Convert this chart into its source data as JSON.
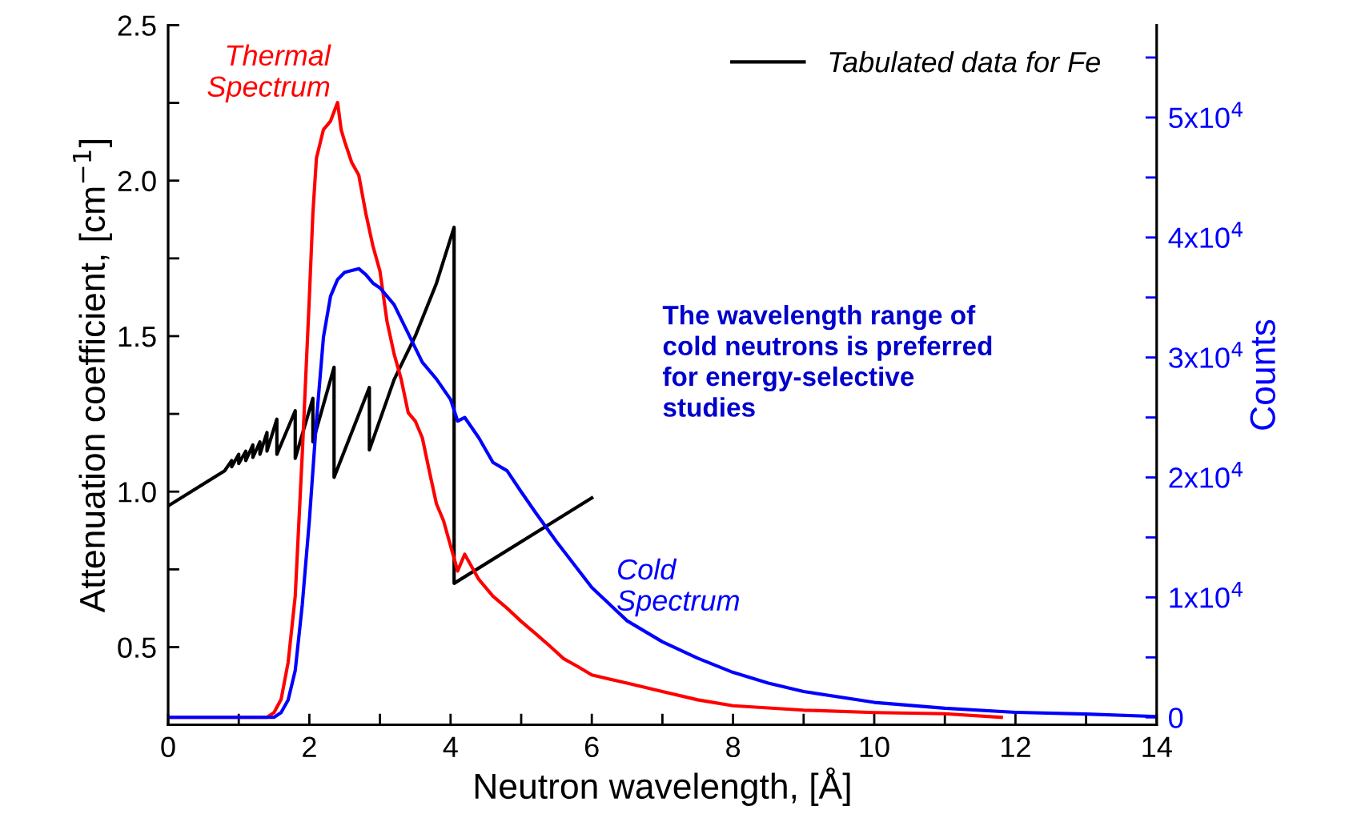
{
  "chart_data": {
    "type": "line",
    "xlabel": "Neutron wavelength, [Å]",
    "ylabel": "Attenuation coefficient, [cm$^{−1}$]",
    "y2label": "Counts",
    "xlim": [
      0,
      14
    ],
    "xticks": [
      0,
      {
        "value": 1,
        "label": null
      },
      2,
      {
        "value": 3,
        "label": null
      },
      4,
      {
        "value": 5,
        "label": null
      },
      6,
      {
        "value": 7,
        "label": null
      },
      8,
      {
        "value": 9,
        "label": null
      },
      10,
      {
        "value": 11,
        "label": null
      },
      12,
      {
        "value": 13,
        "label": null
      },
      14
    ],
    "ylim": [
      0.25,
      2.5
    ],
    "yticks": [
      0.5,
      {
        "value": 0.75,
        "label": null
      },
      {
        "value": 1,
        "label": "1.0"
      },
      {
        "value": 1.25,
        "label": null
      },
      1.5,
      {
        "value": 1.75,
        "label": null
      },
      {
        "value": 2,
        "label": "2.0"
      },
      {
        "value": 2.25,
        "label": null
      },
      2.5
    ],
    "y2lim": [
      -625,
      57700
    ],
    "y2ticks": [
      0,
      {
        "value": 5000,
        "label": null
      },
      {
        "value": 10000,
        "label": "1x10$^{4}$"
      },
      {
        "value": 15000,
        "label": null
      },
      {
        "value": 20000,
        "label": "2x10$^{4}$"
      },
      {
        "value": 25000,
        "label": null
      },
      {
        "value": 30000,
        "label": "3x10$^{4}$"
      },
      {
        "value": 35000,
        "label": null
      },
      {
        "value": 40000,
        "label": "4x10$^{4}$"
      },
      {
        "value": 45000,
        "label": null
      },
      {
        "value": 50000,
        "label": "5x10$^{4}$"
      },
      {
        "value": 55000,
        "label": null
      }
    ],
    "grid": false,
    "legend": "top right",
    "marker": "none",
    "line_style": "solid",
    "annotations": [
      "The wavelength range of\ncold neutrons is preferred\nfor energy-selective\nstudies"
    ],
    "series": [
      {
        "name": "Tabulated data for Fe",
        "color": "#000000",
        "x": [
          0,
          0.8,
          0.9,
          0.9,
          1.0,
          1.0,
          1.1,
          1.1,
          1.2,
          1.2,
          1.3,
          1.3,
          1.4,
          1.4,
          1.54,
          1.54,
          1.8,
          1.8,
          2.05,
          2.05,
          2.35,
          2.35,
          2.85,
          2.85,
          3.2,
          3.5,
          3.8,
          4.05,
          4.05,
          6.0
        ],
        "values": [
          0.954,
          1.067,
          1.1,
          1.08,
          1.12,
          1.09,
          1.13,
          1.1,
          1.15,
          1.11,
          1.16,
          1.12,
          1.19,
          1.13,
          1.233,
          1.12,
          1.26,
          1.107,
          1.3,
          1.16,
          1.4,
          1.046,
          1.335,
          1.134,
          1.36,
          1.5,
          1.67,
          1.85,
          0.705,
          0.98
        ]
      },
      {
        "name": "Thermal\nSpectrum",
        "color": "#ff0000",
        "axis": "y2",
        "x": [
          0,
          1.4,
          1.5,
          1.6,
          1.7,
          1.8,
          1.9,
          2.0,
          2.05,
          2.1,
          2.2,
          2.3,
          2.4,
          2.45,
          2.5,
          2.6,
          2.7,
          2.8,
          2.9,
          3.0,
          3.1,
          3.2,
          3.3,
          3.4,
          3.5,
          3.6,
          3.7,
          3.8,
          3.9,
          4.0,
          4.1,
          4.2,
          4.4,
          4.6,
          4.8,
          5.0,
          5.2,
          5.4,
          5.6,
          5.8,
          6.0,
          6.5,
          7.0,
          7.5,
          8.0,
          9.0,
          10.0,
          11.0,
          11.8
        ],
        "values": [
          0,
          0,
          400,
          1500,
          4600,
          10100,
          22000,
          35000,
          42000,
          46600,
          49000,
          49700,
          51250,
          49000,
          48000,
          46250,
          45200,
          42000,
          39300,
          37200,
          33000,
          30300,
          28200,
          25400,
          24700,
          23300,
          20500,
          17800,
          16400,
          14300,
          12200,
          13600,
          11500,
          10100,
          9100,
          8000,
          7000,
          5970,
          4900,
          4240,
          3540,
          2850,
          2150,
          1460,
          970,
          600,
          400,
          300,
          0
        ]
      },
      {
        "name": "Cold\nSpectrum",
        "color": "#0000ff",
        "axis": "y2",
        "x": [
          0,
          1.5,
          1.6,
          1.7,
          1.8,
          1.9,
          2.0,
          2.1,
          2.2,
          2.3,
          2.4,
          2.5,
          2.7,
          2.8,
          2.9,
          3.0,
          3.2,
          3.4,
          3.6,
          3.8,
          4.0,
          4.1,
          4.2,
          4.4,
          4.6,
          4.8,
          5.0,
          5.2,
          5.5,
          6.0,
          6.5,
          7.0,
          7.5,
          8.0,
          8.5,
          9.0,
          10.0,
          11.0,
          12.0,
          13.0,
          14.0
        ],
        "values": [
          0,
          0,
          400,
          1460,
          3900,
          9400,
          16400,
          24700,
          31700,
          35100,
          36500,
          37100,
          37400,
          36900,
          36200,
          35800,
          34400,
          32000,
          29600,
          28200,
          26500,
          24700,
          25000,
          23300,
          21250,
          20560,
          18800,
          17100,
          14650,
          10830,
          8050,
          6300,
          4930,
          3750,
          2850,
          2150,
          1250,
          760,
          420,
          280,
          70
        ]
      }
    ]
  }
}
